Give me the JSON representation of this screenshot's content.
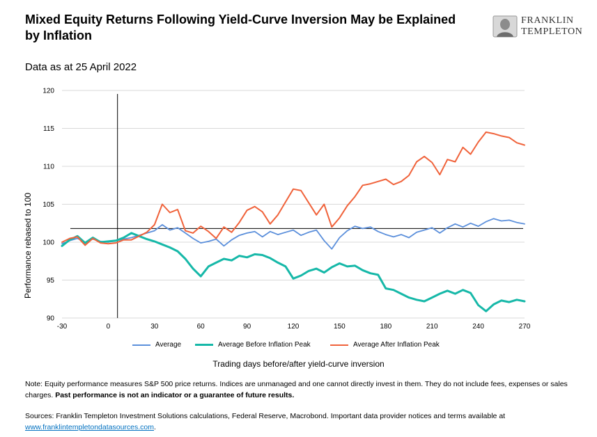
{
  "header": {
    "title": "Mixed Equity Returns Following Yield-Curve Inversion May be Explained by Inflation",
    "subtitle": "Data as at 25 April 2022",
    "logo_line1": "FRANKLIN",
    "logo_line2": "TEMPLETON"
  },
  "footer": {
    "note_prefix": "Note: Equity performance measures S&P 500 price returns. Indices are unmanaged and one cannot directly invest in them. They do not include fees, expenses or sales charges. ",
    "note_bold": "Past performance is not an indicator or a guarantee of future results.",
    "sources_prefix": "Sources: Franklin Templeton Investment Solutions calculations, Federal Reserve, Macrobond. Important data provider notices and terms available at ",
    "sources_link": "www.franklintempletondatasources.com",
    "sources_suffix": "."
  },
  "colors": {
    "average": "#5b8fdb",
    "before": "#16b8a8",
    "after": "#f0623a"
  },
  "chart_data": {
    "type": "line",
    "title": "",
    "xlabel": "Trading days before/after yield-curve inversion",
    "ylabel": "Performance rebased to 100",
    "xlim": [
      -30,
      270
    ],
    "ylim": [
      90,
      120
    ],
    "x_ticks": [
      "-30",
      "0",
      "30",
      "60",
      "90",
      "120",
      "150",
      "180",
      "210",
      "240",
      "270"
    ],
    "y_ticks": [
      "90",
      "95",
      "100",
      "105",
      "110",
      "115",
      "120"
    ],
    "reference_lines": {
      "vertical_x": 6,
      "horizontal_y": 101.8
    },
    "legend_position": "bottom",
    "series": [
      {
        "name": "Average",
        "key": "average",
        "points": [
          [
            -30,
            99.8
          ],
          [
            -25,
            100.2
          ],
          [
            -20,
            100.5
          ],
          [
            -15,
            100.0
          ],
          [
            -10,
            100.4
          ],
          [
            -5,
            100.1
          ],
          [
            0,
            100.0
          ],
          [
            5,
            100.2
          ],
          [
            10,
            100.4
          ],
          [
            15,
            100.6
          ],
          [
            20,
            100.9
          ],
          [
            25,
            101.2
          ],
          [
            30,
            101.5
          ],
          [
            35,
            102.3
          ],
          [
            40,
            101.6
          ],
          [
            45,
            101.9
          ],
          [
            50,
            101.2
          ],
          [
            55,
            100.5
          ],
          [
            60,
            99.9
          ],
          [
            65,
            100.1
          ],
          [
            70,
            100.4
          ],
          [
            75,
            99.5
          ],
          [
            80,
            100.3
          ],
          [
            85,
            100.9
          ],
          [
            90,
            101.2
          ],
          [
            95,
            101.4
          ],
          [
            100,
            100.7
          ],
          [
            105,
            101.4
          ],
          [
            110,
            101.0
          ],
          [
            115,
            101.3
          ],
          [
            120,
            101.6
          ],
          [
            125,
            100.9
          ],
          [
            130,
            101.3
          ],
          [
            135,
            101.6
          ],
          [
            140,
            100.2
          ],
          [
            145,
            99.1
          ],
          [
            150,
            100.6
          ],
          [
            155,
            101.5
          ],
          [
            160,
            102.1
          ],
          [
            165,
            101.8
          ],
          [
            170,
            102.0
          ],
          [
            175,
            101.4
          ],
          [
            180,
            101.0
          ],
          [
            185,
            100.7
          ],
          [
            190,
            101.0
          ],
          [
            195,
            100.6
          ],
          [
            200,
            101.3
          ],
          [
            205,
            101.6
          ],
          [
            210,
            101.9
          ],
          [
            215,
            101.2
          ],
          [
            220,
            101.9
          ],
          [
            225,
            102.4
          ],
          [
            230,
            102.0
          ],
          [
            235,
            102.5
          ],
          [
            240,
            102.1
          ],
          [
            245,
            102.7
          ],
          [
            250,
            103.1
          ],
          [
            255,
            102.8
          ],
          [
            260,
            102.9
          ],
          [
            265,
            102.6
          ],
          [
            270,
            102.4
          ]
        ]
      },
      {
        "name": "Average Before Inflation Peak",
        "key": "before",
        "points": [
          [
            -30,
            99.5
          ],
          [
            -25,
            100.3
          ],
          [
            -20,
            100.8
          ],
          [
            -15,
            99.9
          ],
          [
            -10,
            100.6
          ],
          [
            -5,
            100.0
          ],
          [
            0,
            100.1
          ],
          [
            5,
            100.2
          ],
          [
            10,
            100.6
          ],
          [
            15,
            101.2
          ],
          [
            20,
            100.8
          ],
          [
            25,
            100.4
          ],
          [
            30,
            100.1
          ],
          [
            35,
            99.7
          ],
          [
            40,
            99.3
          ],
          [
            45,
            98.8
          ],
          [
            50,
            97.8
          ],
          [
            55,
            96.5
          ],
          [
            60,
            95.5
          ],
          [
            65,
            96.8
          ],
          [
            70,
            97.3
          ],
          [
            75,
            97.8
          ],
          [
            80,
            97.6
          ],
          [
            85,
            98.2
          ],
          [
            90,
            98.0
          ],
          [
            95,
            98.4
          ],
          [
            100,
            98.3
          ],
          [
            105,
            97.9
          ],
          [
            110,
            97.3
          ],
          [
            115,
            96.8
          ],
          [
            120,
            95.2
          ],
          [
            125,
            95.6
          ],
          [
            130,
            96.2
          ],
          [
            135,
            96.5
          ],
          [
            140,
            96.0
          ],
          [
            145,
            96.7
          ],
          [
            150,
            97.2
          ],
          [
            155,
            96.8
          ],
          [
            160,
            96.9
          ],
          [
            165,
            96.3
          ],
          [
            170,
            95.9
          ],
          [
            175,
            95.7
          ],
          [
            180,
            93.9
          ],
          [
            185,
            93.7
          ],
          [
            190,
            93.2
          ],
          [
            195,
            92.7
          ],
          [
            200,
            92.4
          ],
          [
            205,
            92.2
          ],
          [
            210,
            92.7
          ],
          [
            215,
            93.2
          ],
          [
            220,
            93.6
          ],
          [
            225,
            93.2
          ],
          [
            230,
            93.7
          ],
          [
            235,
            93.3
          ],
          [
            240,
            91.7
          ],
          [
            245,
            90.9
          ],
          [
            250,
            91.8
          ],
          [
            255,
            92.3
          ],
          [
            260,
            92.1
          ],
          [
            265,
            92.4
          ],
          [
            270,
            92.2
          ]
        ]
      },
      {
        "name": "Average After Inflation Peak",
        "key": "after",
        "points": [
          [
            -30,
            100.0
          ],
          [
            -25,
            100.5
          ],
          [
            -20,
            100.7
          ],
          [
            -15,
            99.6
          ],
          [
            -10,
            100.5
          ],
          [
            -5,
            99.9
          ],
          [
            0,
            99.8
          ],
          [
            5,
            99.9
          ],
          [
            10,
            100.3
          ],
          [
            15,
            100.3
          ],
          [
            20,
            100.8
          ],
          [
            25,
            101.3
          ],
          [
            30,
            102.3
          ],
          [
            35,
            105.0
          ],
          [
            40,
            103.9
          ],
          [
            45,
            104.3
          ],
          [
            50,
            101.5
          ],
          [
            55,
            101.2
          ],
          [
            60,
            102.1
          ],
          [
            65,
            101.4
          ],
          [
            70,
            100.5
          ],
          [
            75,
            102.0
          ],
          [
            80,
            101.3
          ],
          [
            85,
            102.6
          ],
          [
            90,
            104.2
          ],
          [
            95,
            104.7
          ],
          [
            100,
            104.0
          ],
          [
            105,
            102.4
          ],
          [
            110,
            103.6
          ],
          [
            115,
            105.3
          ],
          [
            120,
            107.0
          ],
          [
            125,
            106.8
          ],
          [
            130,
            105.2
          ],
          [
            135,
            103.6
          ],
          [
            140,
            105.0
          ],
          [
            145,
            102.0
          ],
          [
            150,
            103.2
          ],
          [
            155,
            104.8
          ],
          [
            160,
            106.0
          ],
          [
            165,
            107.5
          ],
          [
            170,
            107.7
          ],
          [
            175,
            108.0
          ],
          [
            180,
            108.3
          ],
          [
            185,
            107.6
          ],
          [
            190,
            108.0
          ],
          [
            195,
            108.8
          ],
          [
            200,
            110.6
          ],
          [
            205,
            111.3
          ],
          [
            210,
            110.5
          ],
          [
            215,
            108.9
          ],
          [
            220,
            110.9
          ],
          [
            225,
            110.6
          ],
          [
            230,
            112.5
          ],
          [
            235,
            111.6
          ],
          [
            240,
            113.2
          ],
          [
            245,
            114.5
          ],
          [
            250,
            114.3
          ],
          [
            255,
            114.0
          ],
          [
            260,
            113.8
          ],
          [
            265,
            113.1
          ],
          [
            270,
            112.8
          ]
        ]
      }
    ]
  }
}
